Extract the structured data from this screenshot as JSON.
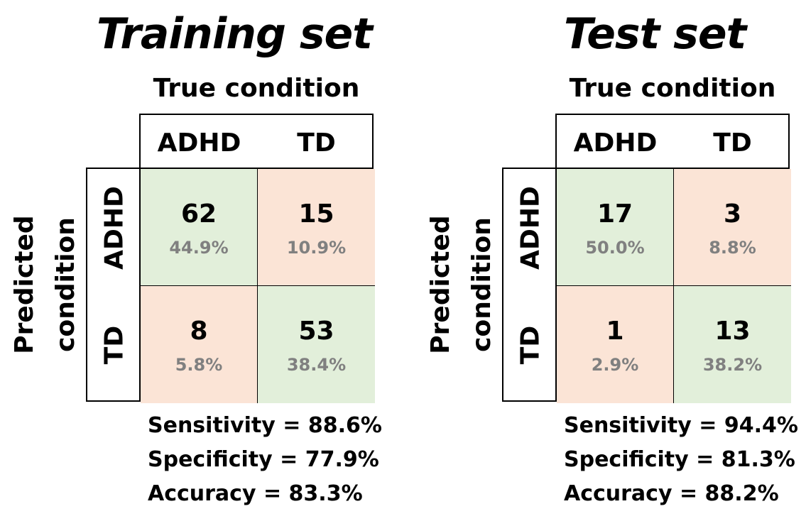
{
  "colors": {
    "correct": "#e2efda",
    "incorrect": "#fbe4d6",
    "percent_text": "#808080"
  },
  "chart_data": [
    {
      "type": "table",
      "title": "Training set",
      "true_label": "True condition",
      "predicted_label": [
        "Predicted",
        "condition"
      ],
      "columns": [
        "ADHD",
        "TD"
      ],
      "rows": [
        "ADHD",
        "TD"
      ],
      "cells": [
        [
          {
            "count": "62",
            "percent": "44.9%",
            "kind": "correct"
          },
          {
            "count": "15",
            "percent": "10.9%",
            "kind": "incorrect"
          }
        ],
        [
          {
            "count": "8",
            "percent": "5.8%",
            "kind": "incorrect"
          },
          {
            "count": "53",
            "percent": "38.4%",
            "kind": "correct"
          }
        ]
      ],
      "metrics": [
        "Sensitivity = 88.6%",
        "Specificity = 77.9%",
        "Accuracy = 83.3%"
      ]
    },
    {
      "type": "table",
      "title": "Test set",
      "true_label": "True condition",
      "predicted_label": [
        "Predicted",
        "condition"
      ],
      "columns": [
        "ADHD",
        "TD"
      ],
      "rows": [
        "ADHD",
        "TD"
      ],
      "cells": [
        [
          {
            "count": "17",
            "percent": "50.0%",
            "kind": "correct"
          },
          {
            "count": "3",
            "percent": "8.8%",
            "kind": "incorrect"
          }
        ],
        [
          {
            "count": "1",
            "percent": "2.9%",
            "kind": "incorrect"
          },
          {
            "count": "13",
            "percent": "38.2%",
            "kind": "correct"
          }
        ]
      ],
      "metrics": [
        "Sensitivity = 94.4%",
        "Specificity = 81.3%",
        "Accuracy = 88.2%"
      ]
    }
  ]
}
